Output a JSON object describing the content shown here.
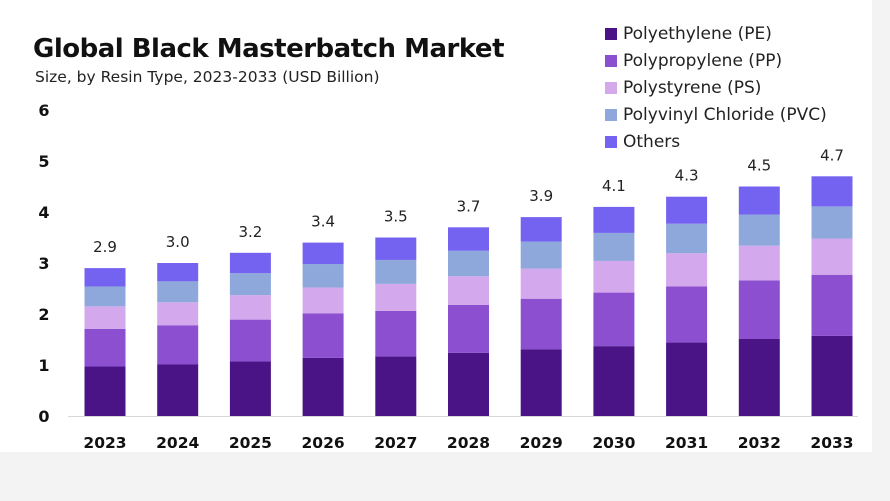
{
  "chart_data": {
    "type": "bar",
    "stacked": true,
    "title": "Global Black Masterbatch Market",
    "subtitle": "Size, by Resin Type, 2023-2033 (USD Billion)",
    "xlabel": "",
    "ylabel": "",
    "ylim": [
      0,
      6
    ],
    "yticks": [
      0,
      1,
      2,
      3,
      4,
      5,
      6
    ],
    "grid": false,
    "legend_position": "top-right",
    "categories": [
      "2023",
      "2024",
      "2025",
      "2026",
      "2027",
      "2028",
      "2029",
      "2030",
      "2031",
      "2032",
      "2033"
    ],
    "totals": [
      2.9,
      3.0,
      3.2,
      3.4,
      3.5,
      3.7,
      3.9,
      4.1,
      4.3,
      4.5,
      4.7
    ],
    "total_labels": [
      "2.9",
      "3.0",
      "3.2",
      "3.4",
      "3.5",
      "3.7",
      "3.9",
      "4.1",
      "4.3",
      "4.5",
      "4.7"
    ],
    "series": [
      {
        "name": "Polyethylene (PE)",
        "color": "#4a1486",
        "values": [
          0.97,
          1.01,
          1.07,
          1.14,
          1.17,
          1.24,
          1.31,
          1.37,
          1.44,
          1.51,
          1.57
        ]
      },
      {
        "name": "Polypropylene (PP)",
        "color": "#8b4fd0",
        "values": [
          0.74,
          0.77,
          0.82,
          0.87,
          0.89,
          0.94,
          0.99,
          1.05,
          1.1,
          1.15,
          1.2
        ]
      },
      {
        "name": "Polystyrene (PS)",
        "color": "#d4a8ec",
        "values": [
          0.44,
          0.45,
          0.48,
          0.51,
          0.53,
          0.56,
          0.59,
          0.62,
          0.65,
          0.68,
          0.71
        ]
      },
      {
        "name": "Polyvinyl Chloride (PVC)",
        "color": "#8fa8dc",
        "values": [
          0.39,
          0.41,
          0.43,
          0.46,
          0.47,
          0.5,
          0.53,
          0.55,
          0.58,
          0.61,
          0.63
        ]
      },
      {
        "name": "Others",
        "color": "#7463f0",
        "values": [
          0.36,
          0.36,
          0.4,
          0.42,
          0.44,
          0.46,
          0.48,
          0.51,
          0.53,
          0.55,
          0.59
        ]
      }
    ]
  }
}
